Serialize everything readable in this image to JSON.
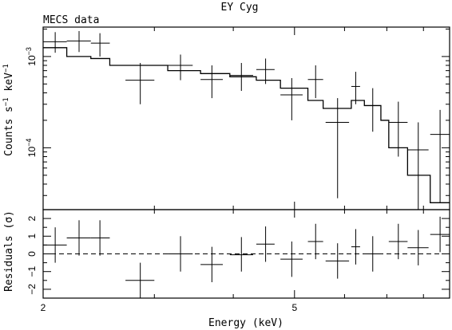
{
  "title": "EY Cyg",
  "annotation": "MECS data",
  "chart_data": [
    {
      "type": "scatter",
      "panel": "spectrum",
      "ylabel_main": "Counts s",
      "ylabel_sup1": "−1",
      "ylabel_mid": " keV",
      "ylabel_sup2": "−1",
      "xscale": "log",
      "yscale": "log",
      "xlim": [
        2.0,
        8.8
      ],
      "ylim": [
        2.1e-05,
        0.0021
      ],
      "yticks": [
        {
          "value": 0.001,
          "base": "10",
          "exp": "−3"
        },
        {
          "value": 0.0001,
          "base": "10",
          "exp": "−4"
        }
      ],
      "data": {
        "name": "MECS data",
        "points": [
          {
            "x": 2.09,
            "xlo": 2.0,
            "xhi": 2.18,
            "y": 0.00145,
            "ylo": 0.0011,
            "yhi": 0.00185
          },
          {
            "x": 2.28,
            "xlo": 2.18,
            "xhi": 2.38,
            "y": 0.00148,
            "ylo": 0.00112,
            "yhi": 0.0019
          },
          {
            "x": 2.46,
            "xlo": 2.38,
            "xhi": 2.55,
            "y": 0.0014,
            "ylo": 0.001,
            "yhi": 0.0018
          },
          {
            "x": 2.85,
            "xlo": 2.7,
            "xhi": 3.0,
            "y": 0.00055,
            "ylo": 0.0003,
            "yhi": 0.00085
          },
          {
            "x": 3.3,
            "xlo": 3.15,
            "xhi": 3.45,
            "y": 0.0008,
            "ylo": 0.00055,
            "yhi": 0.00105
          },
          {
            "x": 3.7,
            "xlo": 3.55,
            "xhi": 3.85,
            "y": 0.00056,
            "ylo": 0.00035,
            "yhi": 0.0008
          },
          {
            "x": 4.12,
            "xlo": 3.95,
            "xhi": 4.3,
            "y": 0.00062,
            "ylo": 0.00042,
            "yhi": 0.00085
          },
          {
            "x": 4.5,
            "xlo": 4.35,
            "xhi": 4.65,
            "y": 0.00072,
            "ylo": 0.0005,
            "yhi": 0.00095
          },
          {
            "x": 4.95,
            "xlo": 4.75,
            "xhi": 5.15,
            "y": 0.00038,
            "ylo": 0.0002,
            "yhi": 0.00058
          },
          {
            "x": 5.4,
            "xlo": 5.25,
            "xhi": 5.55,
            "y": 0.00056,
            "ylo": 0.00035,
            "yhi": 0.0008
          },
          {
            "x": 5.85,
            "xlo": 5.6,
            "xhi": 6.1,
            "y": 0.00019,
            "ylo": 2.8e-05,
            "yhi": 0.00035
          },
          {
            "x": 6.25,
            "xlo": 6.15,
            "xhi": 6.35,
            "y": 0.00047,
            "ylo": 0.0003,
            "yhi": 0.00068
          },
          {
            "x": 6.65,
            "xlo": 6.45,
            "xhi": 6.85,
            "y": 0.00029,
            "ylo": 0.00015,
            "yhi": 0.00045
          },
          {
            "x": 7.3,
            "xlo": 7.05,
            "xhi": 7.55,
            "y": 0.00019,
            "ylo": 8e-05,
            "yhi": 0.00032
          },
          {
            "x": 7.85,
            "xlo": 7.55,
            "xhi": 8.15,
            "y": 9.5e-05,
            "ylo": 2.1e-05,
            "yhi": 0.00019
          },
          {
            "x": 8.5,
            "xlo": 8.2,
            "xhi": 8.8,
            "y": 0.00014,
            "ylo": 2.5e-05,
            "yhi": 0.00026
          }
        ]
      },
      "model": {
        "type": "step",
        "edges": [
          2.0,
          2.18,
          2.38,
          2.55,
          3.15,
          3.55,
          3.95,
          4.35,
          4.75,
          5.25,
          5.55,
          6.15,
          6.45,
          6.85,
          7.05,
          7.55,
          8.2,
          8.8
        ],
        "values": [
          0.00125,
          0.001,
          0.00095,
          0.0008,
          0.0007,
          0.00065,
          0.0006,
          0.00055,
          0.00045,
          0.00033,
          0.00027,
          0.00033,
          0.00029,
          0.0002,
          0.0001,
          5e-05,
          2.5e-05
        ]
      }
    },
    {
      "type": "scatter",
      "panel": "residuals",
      "ylabel": "Residuals (σ)",
      "xlabel": "Energy (keV)",
      "xscale": "log",
      "xlim": [
        2.0,
        8.8
      ],
      "ylim": [
        -2.5,
        2.5
      ],
      "yticks": [
        -2,
        -1,
        0,
        1,
        2
      ],
      "ytick_labels": [
        "−2",
        "−1",
        "0",
        "1",
        "2"
      ],
      "xticks": [
        2,
        5
      ],
      "xtick_labels": [
        "2",
        "5"
      ],
      "zero_line": "dashed",
      "points": [
        {
          "x": 2.09,
          "xlo": 2.0,
          "xhi": 2.18,
          "y": 0.5,
          "ylo": -0.5,
          "yhi": 1.5
        },
        {
          "x": 2.28,
          "xlo": 2.18,
          "xhi": 2.38,
          "y": 0.9,
          "ylo": -0.1,
          "yhi": 1.9
        },
        {
          "x": 2.46,
          "xlo": 2.38,
          "xhi": 2.55,
          "y": 0.9,
          "ylo": -0.1,
          "yhi": 1.9
        },
        {
          "x": 2.85,
          "xlo": 2.7,
          "xhi": 3.0,
          "y": -1.5,
          "ylo": -2.5,
          "yhi": -0.5
        },
        {
          "x": 3.3,
          "xlo": 3.15,
          "xhi": 3.45,
          "y": 0.0,
          "ylo": -1.0,
          "yhi": 1.0
        },
        {
          "x": 3.7,
          "xlo": 3.55,
          "xhi": 3.85,
          "y": -0.6,
          "ylo": -1.6,
          "yhi": 0.4
        },
        {
          "x": 4.12,
          "xlo": 3.95,
          "xhi": 4.3,
          "y": -0.05,
          "ylo": -1.0,
          "yhi": 0.95
        },
        {
          "x": 4.5,
          "xlo": 4.35,
          "xhi": 4.65,
          "y": 0.55,
          "ylo": -0.45,
          "yhi": 1.55
        },
        {
          "x": 4.95,
          "xlo": 4.75,
          "xhi": 5.15,
          "y": -0.3,
          "ylo": -1.3,
          "yhi": 0.7
        },
        {
          "x": 5.4,
          "xlo": 5.25,
          "xhi": 5.55,
          "y": 0.7,
          "ylo": -0.3,
          "yhi": 1.7
        },
        {
          "x": 5.85,
          "xlo": 5.6,
          "xhi": 6.1,
          "y": -0.4,
          "ylo": -1.4,
          "yhi": 0.6
        },
        {
          "x": 6.25,
          "xlo": 6.15,
          "xhi": 6.35,
          "y": 0.4,
          "ylo": -0.6,
          "yhi": 1.4
        },
        {
          "x": 6.65,
          "xlo": 6.45,
          "xhi": 6.85,
          "y": 0.0,
          "ylo": -1.0,
          "yhi": 1.0
        },
        {
          "x": 7.3,
          "xlo": 7.05,
          "xhi": 7.55,
          "y": 0.7,
          "ylo": -0.3,
          "yhi": 1.7
        },
        {
          "x": 7.85,
          "xlo": 7.55,
          "xhi": 8.15,
          "y": 0.35,
          "ylo": -0.65,
          "yhi": 1.35
        },
        {
          "x": 8.5,
          "xlo": 8.2,
          "xhi": 8.8,
          "y": 1.1,
          "ylo": 0.1,
          "yhi": 2.1
        }
      ]
    }
  ]
}
